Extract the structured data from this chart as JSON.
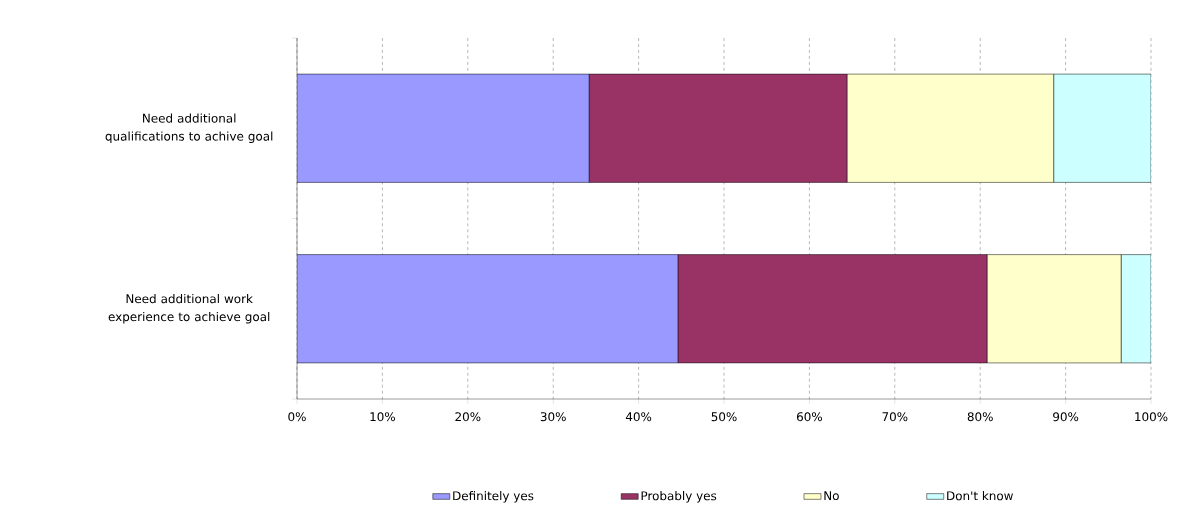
{
  "chart_data": {
    "type": "bar",
    "orientation": "horizontal",
    "stacked": true,
    "categories": [
      "Need additional qualifications to achive goal",
      "Need additional work experience to achieve goal"
    ],
    "series": [
      {
        "name": "Definitely yes",
        "color": "#9999ff",
        "values": [
          34.2,
          44.6
        ]
      },
      {
        "name": "Probably yes",
        "color": "#993366",
        "values": [
          30.2,
          36.2
        ]
      },
      {
        "name": "No",
        "color": "#ffffcc",
        "values": [
          24.2,
          15.7
        ]
      },
      {
        "name": "Don't know",
        "color": "#ccffff",
        "values": [
          11.4,
          3.5
        ]
      }
    ],
    "xlim": [
      0,
      100
    ],
    "xticks": [
      {
        "value": 0,
        "label": "0%"
      },
      {
        "value": 10,
        "label": "10%"
      },
      {
        "value": 20,
        "label": "20%"
      },
      {
        "value": 30,
        "label": "30%"
      },
      {
        "value": 40,
        "label": "40%"
      },
      {
        "value": 50,
        "label": "50%"
      },
      {
        "value": 60,
        "label": "60%"
      },
      {
        "value": 70,
        "label": "70%"
      },
      {
        "value": 80,
        "label": "80%"
      },
      {
        "value": 90,
        "label": "90%"
      },
      {
        "value": 100,
        "label": "100%"
      }
    ],
    "grid": "x",
    "legend": "bottom"
  }
}
